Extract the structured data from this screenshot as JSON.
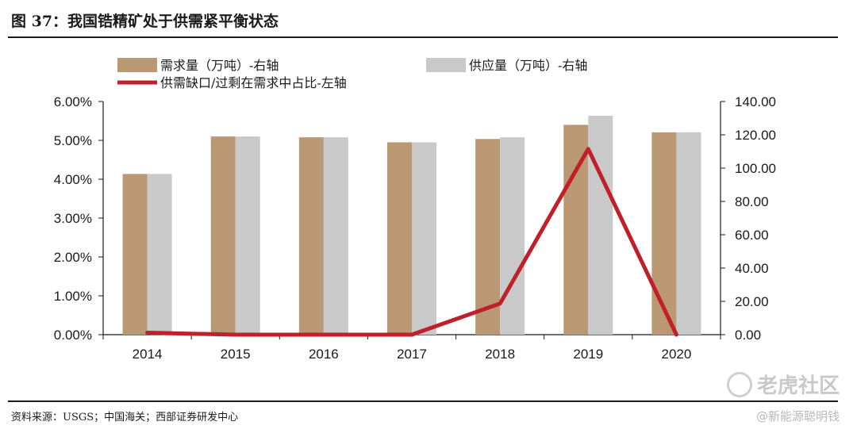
{
  "figure": {
    "title": "图 37：我国锆精矿处于供需紧平衡状态",
    "source": "资料来源：USGS；中国海关；西部证券研发中心"
  },
  "watermark": {
    "brand": "老虎社区",
    "handle": "@新能源聪明钱"
  },
  "chart_data": {
    "type": "bar",
    "categories": [
      "2014",
      "2015",
      "2016",
      "2017",
      "2018",
      "2019",
      "2020"
    ],
    "series": [
      {
        "name": "需求量（万吨）-右轴",
        "kind": "bar",
        "axis": "right",
        "color": "#B99873",
        "values": [
          96.5,
          119,
          118.5,
          115.5,
          117.5,
          126,
          121.5
        ]
      },
      {
        "name": "供应量（万吨）-右轴",
        "kind": "bar",
        "axis": "right",
        "color": "#C9C9C9",
        "values": [
          96.5,
          119,
          118.5,
          115.5,
          118.5,
          131.5,
          121.5
        ]
      },
      {
        "name": "供需缺口/过剩在需求中占比-左轴",
        "kind": "line",
        "axis": "left",
        "color": "#C0202A",
        "values": [
          0.0005,
          0.0,
          0.0,
          0.0,
          0.008,
          0.0478,
          0.0
        ]
      }
    ],
    "y_left": {
      "min": 0,
      "max": 0.06,
      "ticks": [
        "0.00%",
        "1.00%",
        "2.00%",
        "3.00%",
        "4.00%",
        "5.00%",
        "6.00%"
      ]
    },
    "y_right": {
      "min": 0,
      "max": 140,
      "ticks": [
        "0.00",
        "20.00",
        "40.00",
        "60.00",
        "80.00",
        "100.00",
        "120.00",
        "140.00"
      ]
    },
    "grid": false,
    "legend_position": "top"
  }
}
